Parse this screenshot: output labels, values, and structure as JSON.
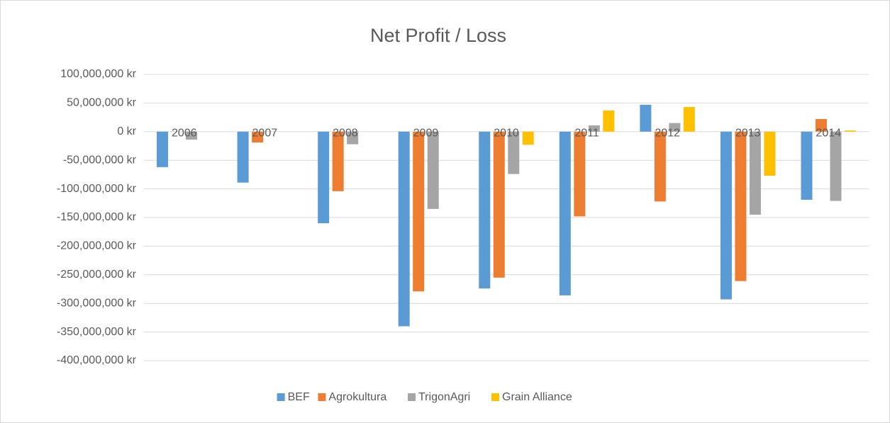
{
  "chart_data": {
    "type": "bar",
    "title": "Net  Profit / Loss",
    "categories": [
      "2006",
      "2007",
      "2008",
      "2009",
      "2010",
      "2011",
      "2012",
      "2013",
      "2014"
    ],
    "series": [
      {
        "name": "BEF",
        "color": "#5b9bd5",
        "values": [
          -62000000,
          -89000000,
          -160000000,
          -340000000,
          -274000000,
          -286000000,
          47000000,
          -293000000,
          -119000000
        ]
      },
      {
        "name": "Agrokultura",
        "color": "#ed7d31",
        "values": [
          null,
          -19000000,
          -104000000,
          -279000000,
          -255000000,
          -148000000,
          -122000000,
          -261000000,
          22000000
        ]
      },
      {
        "name": "TrigonAgri",
        "color": "#a5a5a5",
        "values": [
          -14000000,
          null,
          -22000000,
          -135000000,
          -74000000,
          11000000,
          15000000,
          -145000000,
          -121000000
        ]
      },
      {
        "name": "Grain Alliance",
        "color": "#ffc000",
        "values": [
          null,
          null,
          null,
          null,
          -23000000,
          37000000,
          43000000,
          -77000000,
          2000000
        ]
      }
    ],
    "ylim": [
      -400000000,
      100000000
    ],
    "yticks": [
      {
        "value": -400000000,
        "label": "-400,000,000 kr"
      },
      {
        "value": -350000000,
        "label": "-350,000,000 kr"
      },
      {
        "value": -300000000,
        "label": "-300,000,000 kr"
      },
      {
        "value": -250000000,
        "label": "-250,000,000 kr"
      },
      {
        "value": -200000000,
        "label": "-200,000,000 kr"
      },
      {
        "value": -150000000,
        "label": "-150,000,000 kr"
      },
      {
        "value": -100000000,
        "label": "-100,000,000 kr"
      },
      {
        "value": -50000000,
        "label": "-50,000,000 kr"
      },
      {
        "value": 0,
        "label": "0 kr"
      },
      {
        "value": 50000000,
        "label": "50,000,000 kr"
      },
      {
        "value": 100000000,
        "label": "100,000,000 kr"
      }
    ],
    "grid": true,
    "legend": "bottom"
  }
}
